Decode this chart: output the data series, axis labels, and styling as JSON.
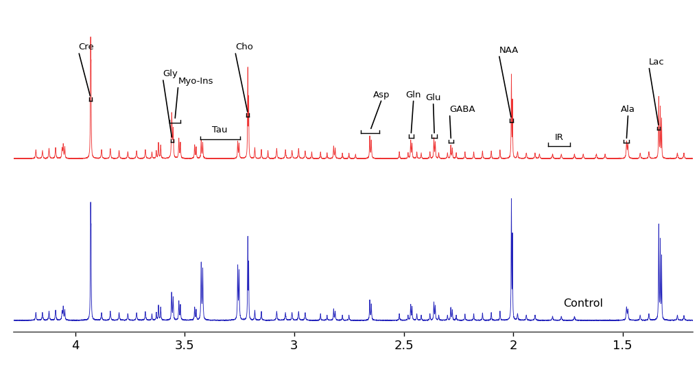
{
  "x_min": 1.18,
  "x_max": 4.28,
  "x_ticks": [
    4.0,
    3.5,
    3.0,
    2.5,
    2.0,
    1.5
  ],
  "x_tick_labels": [
    "4",
    "3.5",
    "3",
    "2.5",
    "2",
    "1.5"
  ],
  "red_color": "#EE3333",
  "blue_color": "#2222BB",
  "background_color": "#FFFFFF"
}
